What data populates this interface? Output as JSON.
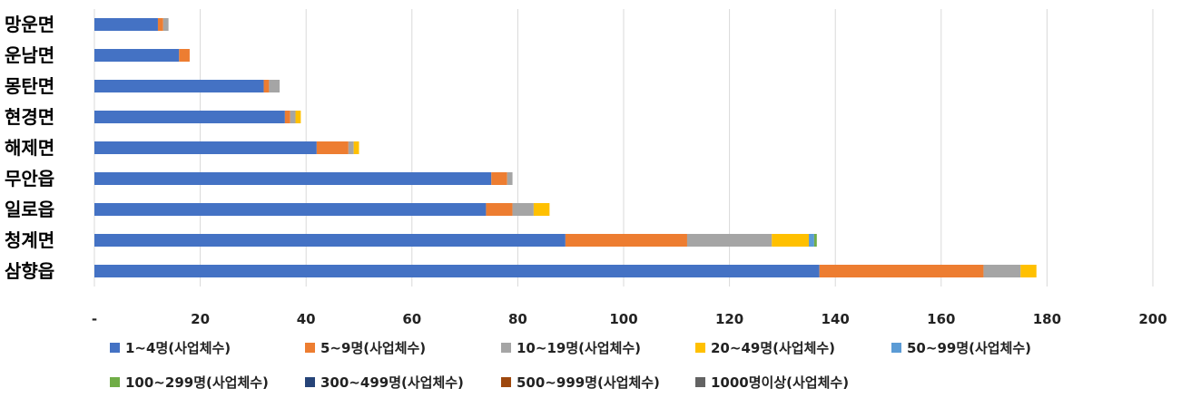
{
  "chart_data": {
    "type": "bar",
    "orientation": "horizontal",
    "stacked": true,
    "title": "",
    "xlabel": "",
    "ylabel": "",
    "xlim": [
      0,
      200
    ],
    "x_ticks": [
      0,
      20,
      40,
      60,
      80,
      100,
      120,
      140,
      160,
      180,
      200
    ],
    "x_tick_labels": [
      "-",
      "20",
      "40",
      "60",
      "80",
      "100",
      "120",
      "140",
      "160",
      "180",
      "200"
    ],
    "grid": true,
    "legend_position": "bottom",
    "categories": [
      "망운면",
      "운남면",
      "몽탄면",
      "현경면",
      "해제면",
      "무안읍",
      "일로읍",
      "청계면",
      "삼향읍"
    ],
    "series": [
      {
        "name": "1~4명(사업체수)",
        "color": "#4472C4",
        "values": [
          12,
          16,
          32,
          36,
          42,
          75,
          74,
          89,
          137
        ]
      },
      {
        "name": "5~9명(사업체수)",
        "color": "#ED7D31",
        "values": [
          1,
          2,
          1,
          1,
          6,
          3,
          5,
          23,
          31
        ]
      },
      {
        "name": "10~19명(사업체수)",
        "color": "#A5A5A5",
        "values": [
          1,
          0,
          2,
          1,
          1,
          1,
          4,
          16,
          7
        ]
      },
      {
        "name": "20~49명(사업체수)",
        "color": "#FFC000",
        "values": [
          0,
          0,
          0,
          1,
          1,
          0,
          3,
          7,
          3
        ]
      },
      {
        "name": "50~99명(사업체수)",
        "color": "#5B9BD5",
        "values": [
          0,
          0,
          0,
          0,
          0,
          0,
          0,
          1,
          0
        ]
      },
      {
        "name": "100~299명(사업체수)",
        "color": "#70AD47",
        "values": [
          0,
          0,
          0,
          0,
          0,
          0,
          0,
          0.5,
          0
        ]
      },
      {
        "name": "300~499명(사업체수)",
        "color": "#264478",
        "values": [
          0,
          0,
          0,
          0,
          0,
          0,
          0,
          0,
          0
        ]
      },
      {
        "name": "500~999명(사업체수)",
        "color": "#9E480E",
        "values": [
          0,
          0,
          0,
          0,
          0,
          0,
          0,
          0,
          0
        ]
      },
      {
        "name": "1000명이상(사업체수)",
        "color": "#636363",
        "values": [
          0,
          0,
          0,
          0,
          0,
          0,
          0,
          0,
          0
        ]
      }
    ]
  }
}
